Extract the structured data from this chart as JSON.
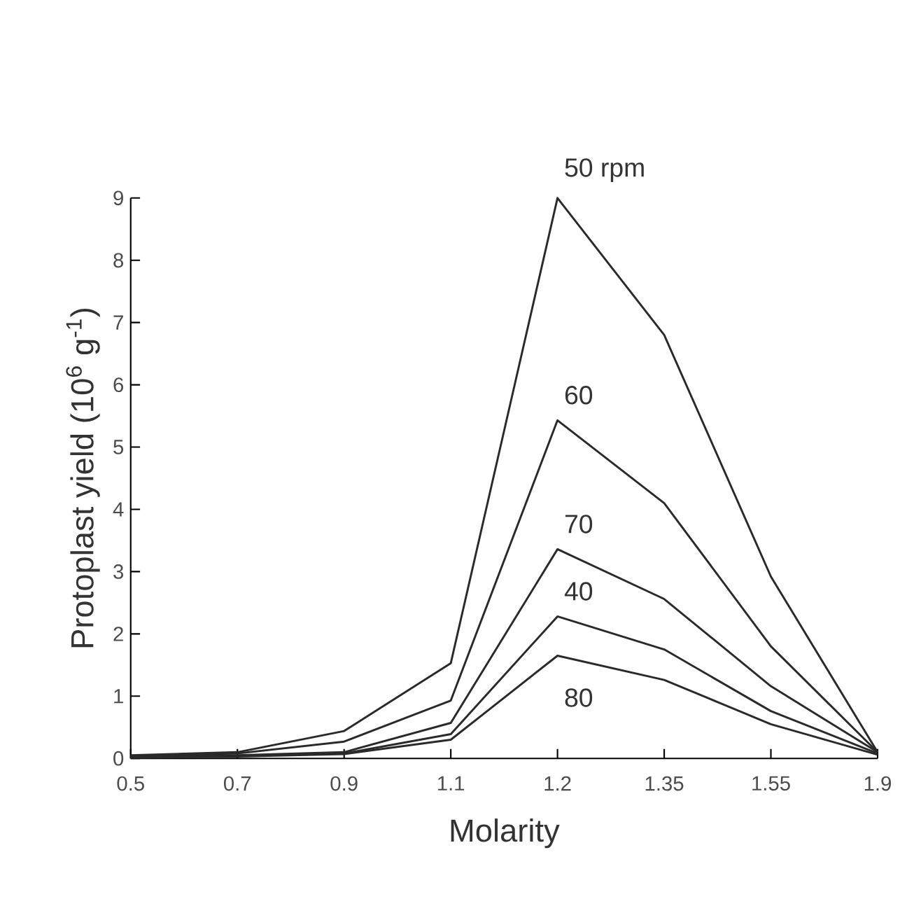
{
  "chart_data": {
    "type": "line",
    "xlabel": "Molarity",
    "ylabel": "Protoplast yield (10$^{6}$ g$^{-1}$)",
    "categories": [
      "0.5",
      "0.7",
      "0.9",
      "1.1",
      "1.2",
      "1.35",
      "1.55",
      "1.9"
    ],
    "ylim": [
      0,
      9
    ],
    "yticks": [
      0,
      1,
      2,
      3,
      4,
      5,
      6,
      7,
      8,
      9
    ],
    "grid": false,
    "legend": false,
    "marker": "none",
    "line_style": "solid",
    "series": [
      {
        "name": "50 rpm",
        "color": "#2a2a2a",
        "values": [
          0.05,
          0.1,
          0.44,
          1.53,
          9.0,
          6.8,
          2.92,
          0.1
        ]
      },
      {
        "name": "60",
        "color": "#2a2a2a",
        "values": [
          0.03,
          0.08,
          0.27,
          0.93,
          5.43,
          4.1,
          1.8,
          0.1
        ]
      },
      {
        "name": "70",
        "color": "#2a2a2a",
        "values": [
          0.02,
          0.05,
          0.1,
          0.57,
          3.36,
          2.56,
          1.16,
          0.1
        ]
      },
      {
        "name": "40",
        "color": "#2a2a2a",
        "values": [
          0.02,
          0.04,
          0.08,
          0.39,
          2.28,
          1.75,
          0.76,
          0.08
        ]
      },
      {
        "name": "80",
        "color": "#2a2a2a",
        "values": [
          0.01,
          0.03,
          0.07,
          0.3,
          1.65,
          1.26,
          0.55,
          0.06
        ]
      }
    ]
  }
}
